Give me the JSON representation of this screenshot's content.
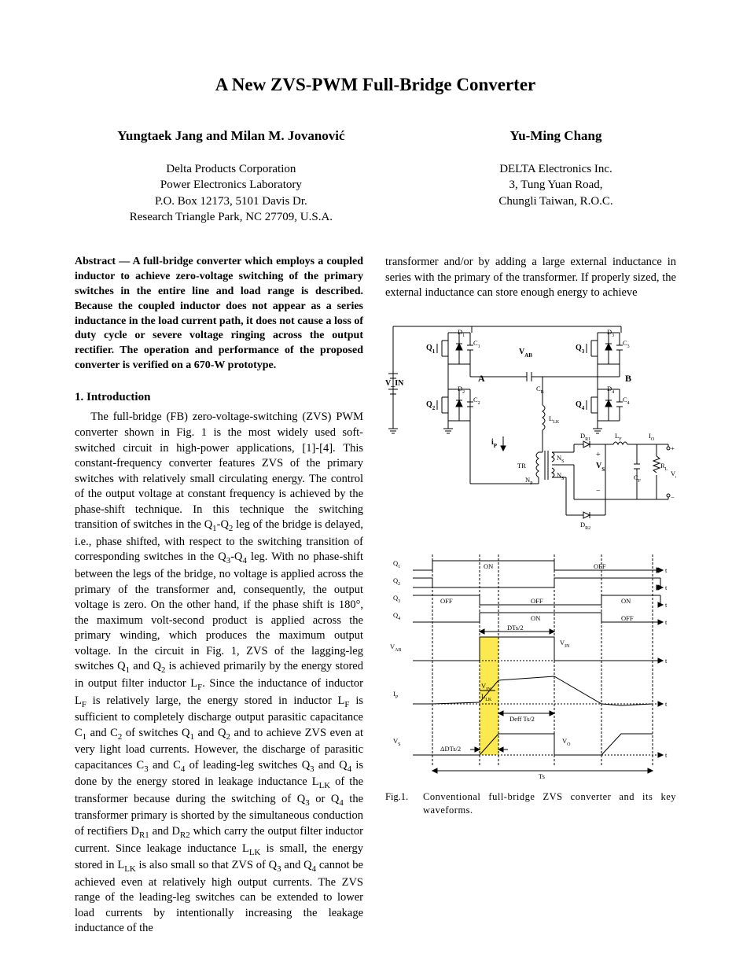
{
  "title": "A New ZVS-PWM Full-Bridge Converter",
  "authors": {
    "left": {
      "names": "Yungtaek Jang and Milan M. Jovanović",
      "affil": [
        "Delta Products Corporation",
        "Power Electronics Laboratory",
        "P.O. Box 12173, 5101 Davis Dr.",
        "Research Triangle Park, NC 27709, U.S.A."
      ]
    },
    "right": {
      "names": "Yu-Ming Chang",
      "affil": [
        "DELTA Electronics Inc.",
        "3, Tung Yuan Road,",
        "Chungli  Taiwan, R.O.C."
      ]
    }
  },
  "abstract": "Abstract — A full-bridge converter which employs a coupled inductor to achieve zero-voltage switching of the primary switches in the entire line and load range is described. Because the coupled inductor does not appear as a series inductance in the load current path, it does not cause a loss of duty cycle or severe voltage ringing across the output rectifier. The operation and performance of the proposed converter is verified on a 670-W prototype.",
  "section1_head": "1. Introduction",
  "intro_html": "The full-bridge (FB) zero-voltage-switching (ZVS) PWM converter shown in Fig. 1 is the most widely used soft-switched circuit in high-power applications, [1]-[4]. This constant-frequency converter features ZVS of the primary switches with relatively small circulating energy. The control of the output voltage at constant frequency is achieved by the phase-shift technique. In this technique the switching transition of switches in the Q<sub>1</sub>-Q<sub>2</sub> leg of the bridge is delayed, i.e., phase shifted, with respect to the switching transition of corresponding switches in the Q<sub>3</sub>-Q<sub>4</sub> leg. With no phase-shift between the legs of the bridge, no voltage is applied across the primary of the transformer and, consequently, the output voltage is zero. On the other hand, if the phase shift is 180°, the maximum volt-second product is applied across the primary winding, which produces the maximum output voltage. In the circuit in Fig. 1, ZVS of the lagging-leg switches Q<sub>1</sub> and Q<sub>2</sub> is achieved primarily by the energy stored in output filter inductor L<sub>F</sub>. Since the inductance of inductor L<sub>F</sub> is relatively large, the energy stored in inductor L<sub>F</sub> is sufficient to completely discharge output parasitic capacitance C<sub>1</sub> and C<sub>2</sub> of switches Q<sub>1</sub> and Q<sub>2</sub> and to achieve ZVS even at very light load currents. However, the discharge of parasitic capacitances C<sub>3</sub> and C<sub>4</sub> of leading-leg switches Q<sub>3</sub> and Q<sub>4</sub> is done by the energy stored in leakage inductance L<sub>LK</sub> of the transformer because during the switching of Q<sub>3</sub> or Q<sub>4</sub> the transformer primary is shorted by the simultaneous conduction of rectifiers D<sub>R1</sub> and D<sub>R2</sub> which carry the output filter inductor current. Since leakage inductance L<sub>LK</sub> is small, the energy stored in L<sub>LK</sub> is also small so that ZVS of Q<sub>3</sub> and Q<sub>4</sub> cannot be achieved even at relatively high output currents. The ZVS range of the leading-leg switches can be extended to lower load currents by intentionally increasing the leakage inductance of the",
  "col2_top": "transformer and/or by adding a large external inductance in series with the primary of the transformer. If properly sized, the external inductance can store enough energy to achieve",
  "figure1": {
    "type": "circuit+timing",
    "caption_label": "Fig.1.",
    "caption_text": "Conventional full-bridge ZVS converter and its key waveforms.",
    "background_color": "#ffffff",
    "stroke_color": "#000000",
    "highlight_color": "#fce94f",
    "stroke_width": 1,
    "circuit": {
      "labels": [
        "V_IN",
        "Q_1",
        "Q_2",
        "Q_3",
        "Q_4",
        "D_1",
        "D_2",
        "D_3",
        "D_4",
        "C_1",
        "C_2",
        "C_3",
        "C_4",
        "A",
        "B",
        "V_AB",
        "C_B",
        "L_LK",
        "i_P",
        "TR",
        "N_P",
        "N_S",
        "N_S",
        "D_R1",
        "D_R2",
        "L_F",
        "C_F",
        "R_L",
        "V_S",
        "V_o",
        "I_O",
        "+",
        "-"
      ]
    },
    "timing": {
      "rows": [
        "Q_1",
        "Q_2",
        "Q_3",
        "Q_4",
        "V_AB",
        "I_P",
        "V_S"
      ],
      "text_labels": [
        "ON",
        "OFF",
        "ON",
        "OFF",
        "OFF",
        "ON",
        "ON",
        "OFF",
        "DTs/2",
        "V_IN",
        "V_IN",
        "L_LK",
        "Deff Ts/2",
        "ΔDTs/2",
        "V_O",
        "Ts",
        "t"
      ],
      "t_axis_font": 8.5,
      "on_off_font": 8.5
    }
  }
}
